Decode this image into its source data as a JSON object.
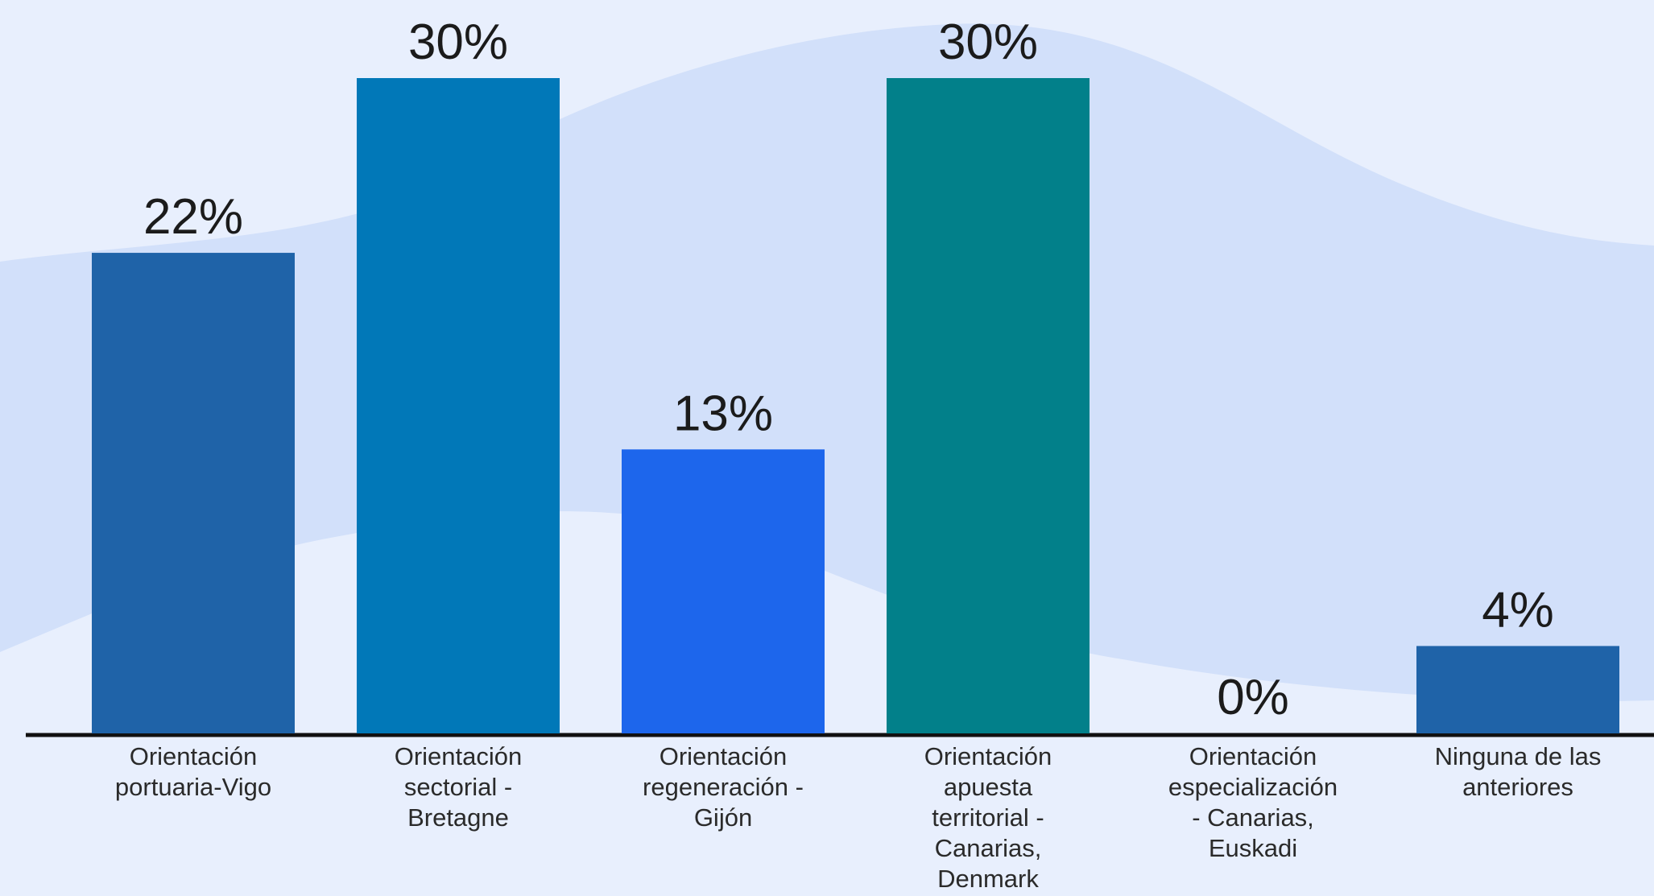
{
  "chart_data": {
    "type": "bar",
    "categories": [
      [
        "Orientación",
        "portuaria-Vigo"
      ],
      [
        "Orientación",
        "sectorial -",
        "Bretagne"
      ],
      [
        "Orientación",
        "regeneración -",
        "Gijón"
      ],
      [
        "Orientación",
        "apuesta",
        "territorial -",
        "Canarias,",
        "Denmark"
      ],
      [
        "Orientación",
        "especialización",
        "- Canarias,",
        "Euskadi"
      ],
      [
        "Ninguna de las",
        "anteriores"
      ]
    ],
    "values": [
      22,
      30,
      13,
      30,
      0,
      4
    ],
    "value_labels": [
      "22%",
      "30%",
      "13%",
      "30%",
      "0%",
      "4%"
    ],
    "bar_colors": [
      "#1f63a8",
      "#0178b8",
      "#1d66ec",
      "#02808a",
      "#1f63a8",
      "#1f63a8"
    ],
    "ylim": [
      0,
      30
    ],
    "grid": false,
    "legend": "none",
    "title": "",
    "xlabel": "",
    "ylabel": ""
  },
  "colors": {
    "background": "#e8effd",
    "wave": "#d2e0fa",
    "axis": "#111111"
  }
}
